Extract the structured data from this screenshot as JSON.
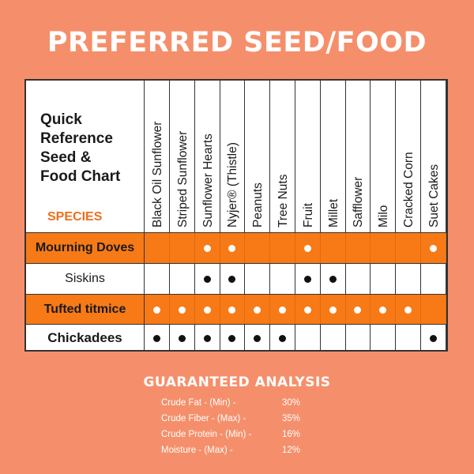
{
  "title": "PREFERRED SEED/FOOD",
  "chart": {
    "header_label": "Quick\nReference\nSeed &\nFood Chart",
    "species_label": "SPECIES",
    "columns": [
      "Black Oil Sunflower",
      "Striped Sunflower",
      "Sunflower Hearts",
      "Nyjer® (Thistle)",
      "Peanuts",
      "Tree Nuts",
      "Fruit",
      "Millet",
      "Safflower",
      "Milo",
      "Cracked Corn",
      "Suet Cakes"
    ],
    "rows": [
      {
        "name": "Mourning Doves",
        "style": "orange",
        "marks": [
          false,
          false,
          true,
          true,
          false,
          false,
          true,
          false,
          false,
          false,
          false,
          true
        ]
      },
      {
        "name": "Siskins",
        "style": "white",
        "marks": [
          false,
          false,
          true,
          true,
          false,
          false,
          true,
          true,
          false,
          false,
          false,
          false
        ]
      },
      {
        "name": "Tufted titmice",
        "style": "orange",
        "marks": [
          true,
          true,
          true,
          true,
          true,
          true,
          true,
          true,
          true,
          true,
          true,
          false
        ]
      },
      {
        "name": "Chickadees",
        "style": "white",
        "marks": [
          true,
          true,
          true,
          true,
          true,
          true,
          false,
          false,
          false,
          false,
          false,
          true
        ]
      }
    ]
  },
  "analysis": {
    "title": "GUARANTEED ANALYSIS",
    "items": [
      {
        "name": "Crude Fat - (Min) -",
        "value": "30%"
      },
      {
        "name": "Crude Fiber - (Max) -",
        "value": "35%"
      },
      {
        "name": "Crude Protein - (Min) -",
        "value": "16%"
      },
      {
        "name": "Moisture - (Max) -",
        "value": "12%"
      }
    ]
  },
  "colors": {
    "background": "#f58f6b",
    "row_orange": "#f77a16",
    "species": "#f06e1d"
  }
}
